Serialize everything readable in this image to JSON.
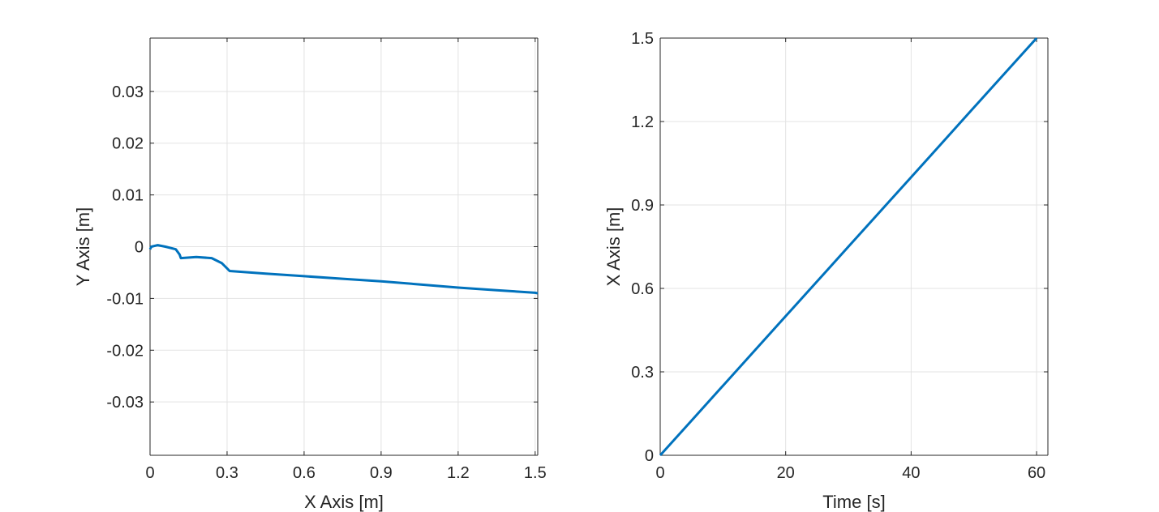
{
  "chart_data": [
    {
      "type": "line",
      "xlabel": "X Axis [m]",
      "ylabel": "Y Axis [m]",
      "xlim": [
        0,
        1.51
      ],
      "ylim": [
        -0.0403,
        0.0403
      ],
      "xticks": [
        0,
        0.3,
        0.6,
        0.9,
        1.2,
        1.5
      ],
      "xtick_labels": [
        "0",
        "0.3",
        "0.6",
        "0.9",
        "1.2",
        "1.5"
      ],
      "yticks": [
        0.03,
        0.02,
        0.01,
        0,
        -0.01,
        -0.02,
        -0.03
      ],
      "ytick_labels": [
        "0.03",
        "0.02",
        "0.01",
        "0",
        "-0.01",
        "-0.02",
        "-0.03"
      ],
      "grid": true,
      "color": "#0072BD",
      "series": [
        {
          "x": [
            0,
            0.005,
            0.03,
            0.06,
            0.1,
            0.115,
            0.12,
            0.18,
            0.24,
            0.28,
            0.3,
            0.31,
            0.45,
            0.6,
            0.75,
            0.9,
            1.05,
            1.2,
            1.35,
            1.5,
            1.51
          ],
          "y": [
            -0.0005,
            0.0,
            0.0003,
            0.0,
            -0.0005,
            -0.0015,
            -0.0022,
            -0.002,
            -0.0022,
            -0.0032,
            -0.0042,
            -0.0047,
            -0.0052,
            -0.0057,
            -0.0062,
            -0.0067,
            -0.0073,
            -0.0079,
            -0.0084,
            -0.0089,
            -0.009
          ]
        }
      ]
    },
    {
      "type": "line",
      "xlabel": "Time [s]",
      "ylabel": "X Axis [m]",
      "xlim": [
        0,
        61.8
      ],
      "ylim": [
        0,
        1.5
      ],
      "xticks": [
        0,
        20,
        40,
        60
      ],
      "xtick_labels": [
        "0",
        "20",
        "40",
        "60"
      ],
      "yticks": [
        0,
        0.3,
        0.6,
        0.9,
        1.2,
        1.5
      ],
      "ytick_labels": [
        "0",
        "0.3",
        "0.6",
        "0.9",
        "1.2",
        "1.5"
      ],
      "grid": true,
      "color": "#0072BD",
      "series": [
        {
          "x": [
            0,
            5,
            10,
            15,
            20,
            25,
            30,
            35,
            40,
            45,
            50,
            55,
            60
          ],
          "y": [
            0,
            0.125,
            0.25,
            0.375,
            0.5,
            0.625,
            0.75,
            0.875,
            1.0,
            1.125,
            1.25,
            1.375,
            1.5
          ]
        }
      ]
    }
  ]
}
